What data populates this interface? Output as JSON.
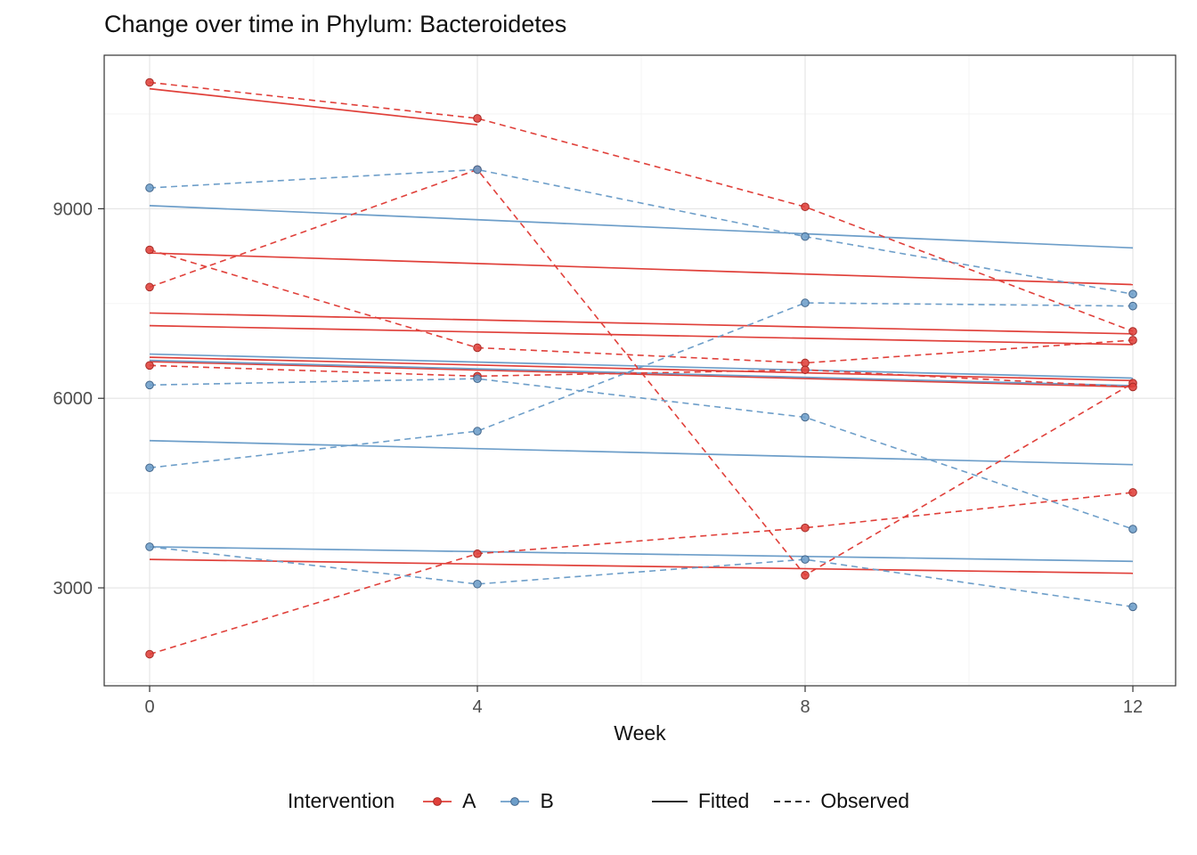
{
  "title": "Change over time in Phylum: Bacteroidetes",
  "chart_data": {
    "type": "line",
    "title": "Change over time in Phylum: Bacteroidetes",
    "xlabel": "Week",
    "ylabel": "",
    "x_ticks": [
      0,
      4,
      8,
      12
    ],
    "y_ticks": [
      3000,
      6000,
      9000
    ],
    "x_minor": [
      2,
      6,
      10
    ],
    "y_minor": [
      1500,
      4500,
      7500,
      10500
    ],
    "ylim": [
      1450,
      11430
    ],
    "weeks": [
      0,
      4,
      8,
      12
    ],
    "grid": "on",
    "style": {
      "grid_major": "#e4e4e4",
      "grid_minor": "#f3f3f3",
      "panel_border": "#333333",
      "tick_label_color": "#4d4d4d"
    },
    "groups": {
      "A": {
        "color": "#e0403a",
        "stroke": "#a62b26"
      },
      "B": {
        "color": "#6d9ec9",
        "stroke": "#44678c"
      }
    },
    "observed": [
      {
        "group": "A",
        "values": [
          11000,
          10430,
          9030,
          7060
        ]
      },
      {
        "group": "A",
        "values": [
          8350,
          6800,
          6560,
          6920
        ]
      },
      {
        "group": "A",
        "values": [
          7760,
          9620,
          3200,
          6240
        ]
      },
      {
        "group": "A",
        "values": [
          6520,
          6350,
          6450,
          6180
        ]
      },
      {
        "group": "A",
        "values": [
          1950,
          3540,
          3950,
          4510
        ]
      },
      {
        "group": "B",
        "values": [
          9330,
          9620,
          8560,
          7650
        ]
      },
      {
        "group": "B",
        "values": [
          6210,
          6310,
          5700,
          3930
        ]
      },
      {
        "group": "B",
        "values": [
          4900,
          5480,
          7510,
          7460
        ]
      },
      {
        "group": "B",
        "values": [
          3650,
          3060,
          3450,
          2700
        ]
      }
    ],
    "fitted": [
      {
        "group": "A",
        "x": [
          0,
          4
        ],
        "y": [
          10900,
          10330
        ]
      },
      {
        "group": "A",
        "x": [
          0,
          12
        ],
        "y": [
          8300,
          7800
        ]
      },
      {
        "group": "A",
        "x": [
          0,
          12
        ],
        "y": [
          7350,
          7020
        ]
      },
      {
        "group": "A",
        "x": [
          0,
          12
        ],
        "y": [
          7150,
          6850
        ]
      },
      {
        "group": "A",
        "x": [
          0,
          12
        ],
        "y": [
          6650,
          6280
        ]
      },
      {
        "group": "A",
        "x": [
          0,
          12
        ],
        "y": [
          6580,
          6180
        ]
      },
      {
        "group": "A",
        "x": [
          0,
          12
        ],
        "y": [
          3450,
          3230
        ]
      },
      {
        "group": "B",
        "x": [
          0,
          12
        ],
        "y": [
          9050,
          8380
        ]
      },
      {
        "group": "B",
        "x": [
          0,
          12
        ],
        "y": [
          6700,
          6320
        ]
      },
      {
        "group": "B",
        "x": [
          0,
          12
        ],
        "y": [
          6600,
          6200
        ]
      },
      {
        "group": "B",
        "x": [
          0,
          12
        ],
        "y": [
          5330,
          4950
        ]
      },
      {
        "group": "B",
        "x": [
          0,
          12
        ],
        "y": [
          3650,
          3420
        ]
      }
    ],
    "legend": {
      "title": "Intervention",
      "items": [
        "A",
        "B"
      ],
      "linetype_items": [
        "Fitted",
        "Observed"
      ],
      "position": "bottom"
    }
  }
}
